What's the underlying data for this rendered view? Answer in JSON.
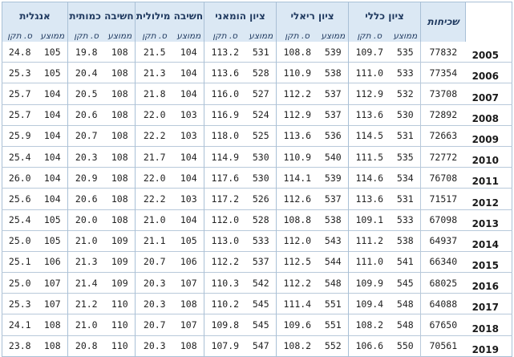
{
  "header": {
    "groups": [
      "אנגלית",
      "חשיבה כמותית",
      "חשיבה מילולית",
      "ציון הומאני",
      "ציון ריאלי",
      "ציון כללי"
    ],
    "std_label": "ס. תקן",
    "mean_label": "ממוצע",
    "count_label": "שכיחות"
  },
  "rows": [
    {
      "year": "2005",
      "count": "77832",
      "cols": [
        "24.8",
        "105",
        "19.8",
        "108",
        "21.5",
        "104",
        "113.2",
        "531",
        "108.8",
        "539",
        "109.7",
        "535"
      ]
    },
    {
      "year": "2006",
      "count": "77354",
      "cols": [
        "25.3",
        "105",
        "20.4",
        "108",
        "21.3",
        "104",
        "113.6",
        "528",
        "110.9",
        "538",
        "111.0",
        "533"
      ]
    },
    {
      "year": "2007",
      "count": "73708",
      "cols": [
        "25.7",
        "104",
        "20.5",
        "108",
        "21.8",
        "104",
        "116.0",
        "527",
        "112.2",
        "537",
        "112.9",
        "532"
      ]
    },
    {
      "year": "2008",
      "count": "72892",
      "cols": [
        "25.7",
        "104",
        "20.6",
        "108",
        "22.0",
        "103",
        "116.9",
        "524",
        "112.9",
        "537",
        "113.6",
        "530"
      ]
    },
    {
      "year": "2009",
      "count": "72663",
      "cols": [
        "25.9",
        "104",
        "20.7",
        "108",
        "22.2",
        "103",
        "118.0",
        "525",
        "113.6",
        "536",
        "114.5",
        "531"
      ]
    },
    {
      "year": "2010",
      "count": "72772",
      "cols": [
        "25.4",
        "104",
        "20.3",
        "108",
        "21.7",
        "104",
        "114.9",
        "530",
        "110.9",
        "540",
        "111.5",
        "535"
      ]
    },
    {
      "year": "2011",
      "count": "76708",
      "cols": [
        "26.0",
        "104",
        "20.9",
        "108",
        "22.0",
        "104",
        "117.6",
        "530",
        "114.1",
        "539",
        "114.6",
        "534"
      ]
    },
    {
      "year": "2012",
      "count": "71517",
      "cols": [
        "25.6",
        "104",
        "20.6",
        "108",
        "22.2",
        "103",
        "117.2",
        "526",
        "112.6",
        "537",
        "113.6",
        "531"
      ]
    },
    {
      "year": "2013",
      "count": "67098",
      "cols": [
        "25.4",
        "105",
        "20.0",
        "108",
        "21.0",
        "104",
        "112.0",
        "528",
        "108.8",
        "538",
        "109.1",
        "533"
      ]
    },
    {
      "year": "2014",
      "count": "64937",
      "cols": [
        "25.0",
        "105",
        "21.0",
        "109",
        "21.1",
        "105",
        "113.0",
        "533",
        "112.0",
        "543",
        "111.2",
        "538"
      ]
    },
    {
      "year": "2015",
      "count": "66340",
      "cols": [
        "25.1",
        "106",
        "21.3",
        "109",
        "20.7",
        "106",
        "112.2",
        "537",
        "112.5",
        "544",
        "111.0",
        "541"
      ]
    },
    {
      "year": "2016",
      "count": "68025",
      "cols": [
        "25.0",
        "107",
        "21.4",
        "109",
        "20.3",
        "107",
        "110.3",
        "542",
        "112.2",
        "548",
        "109.9",
        "545"
      ]
    },
    {
      "year": "2017",
      "count": "64088",
      "cols": [
        "25.3",
        "107",
        "21.2",
        "110",
        "20.3",
        "108",
        "110.2",
        "545",
        "111.4",
        "551",
        "109.4",
        "548"
      ]
    },
    {
      "year": "2018",
      "count": "67650",
      "cols": [
        "24.1",
        "108",
        "21.0",
        "110",
        "20.7",
        "107",
        "109.8",
        "545",
        "109.6",
        "551",
        "108.2",
        "548"
      ]
    },
    {
      "year": "2019",
      "count": "70561",
      "cols": [
        "23.8",
        "108",
        "20.8",
        "110",
        "20.3",
        "108",
        "107.9",
        "547",
        "108.2",
        "552",
        "106.6",
        "550"
      ]
    }
  ]
}
